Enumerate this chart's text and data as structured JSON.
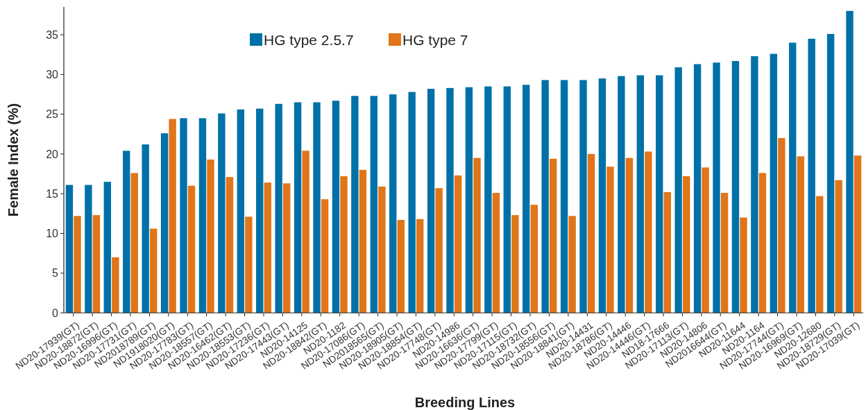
{
  "chart_data": {
    "type": "bar",
    "xlabel": "Breeding Lines",
    "ylabel": "Female Index (%)",
    "categories": [
      "ND20-17939(GT)",
      "ND20-18872(GT)",
      "ND20-16996(GT)",
      "ND20-17731(GT)",
      "ND2018789(GT)",
      "ND1918020(GT)",
      "ND20-17783(GT)",
      "ND20-18557(GT)",
      "ND20-16462(GT)",
      "ND20-18553(GT)",
      "ND20-17236(GT)",
      "ND20-17443(GT)",
      "ND20-14125",
      "ND20-18842(GT)",
      "ND20-1182",
      "ND20-17086(GT)",
      "ND2018565(GT)",
      "ND20-18905(GT)",
      "ND20-18854(GT)",
      "ND20-17748(GT)",
      "ND20-14986",
      "ND20-16636(GT)",
      "ND20-17799(GT)",
      "ND20-17115(GT)",
      "ND20-18732(GT)",
      "ND20-18556(GT)",
      "ND20-18841(GT)",
      "ND20-14431",
      "ND20-18786(GT)",
      "ND20-14446",
      "ND20-14446(GT)",
      "ND18-17666",
      "ND20-17113(GT)",
      "ND20-14806",
      "ND2016644(GT)",
      "ND20-11644",
      "ND20-1164",
      "ND20-17744(GT)",
      "ND20-16969(GT)",
      "ND20-12680",
      "ND20-18729(GT)",
      "ND20-17039(GT)"
    ],
    "series": [
      {
        "name": "HG type 2.5.7",
        "color": "#0071a8",
        "values": [
          16.1,
          16.1,
          16.5,
          20.4,
          21.2,
          22.6,
          24.5,
          24.5,
          25.1,
          25.6,
          25.7,
          26.3,
          26.5,
          26.5,
          26.7,
          27.3,
          27.3,
          27.5,
          27.8,
          28.2,
          28.3,
          28.4,
          28.5,
          28.5,
          28.7,
          29.3,
          29.3,
          29.3,
          29.5,
          29.8,
          29.9,
          29.9,
          30.9,
          31.3,
          31.5,
          31.7,
          32.3,
          32.6,
          34.0,
          34.5,
          35.1,
          38.0
        ]
      },
      {
        "name": "HG type 7",
        "color": "#e07519",
        "values": [
          12.2,
          12.3,
          7.0,
          17.6,
          10.6,
          24.4,
          16.0,
          19.3,
          17.1,
          12.1,
          16.4,
          16.3,
          20.4,
          14.3,
          17.2,
          18.0,
          15.9,
          11.7,
          11.8,
          15.7,
          17.3,
          19.5,
          15.1,
          12.3,
          13.6,
          19.4,
          12.2,
          20.0,
          18.4,
          19.5,
          20.3,
          15.2,
          17.2,
          18.3,
          15.1,
          12.0,
          17.6,
          22.0,
          19.7,
          14.7,
          16.7,
          19.8
        ]
      }
    ],
    "ylim": [
      0,
      38.5
    ],
    "yticks": [
      0,
      5,
      10,
      15,
      20,
      25,
      30,
      35
    ],
    "legend": "top",
    "grid": false
  }
}
